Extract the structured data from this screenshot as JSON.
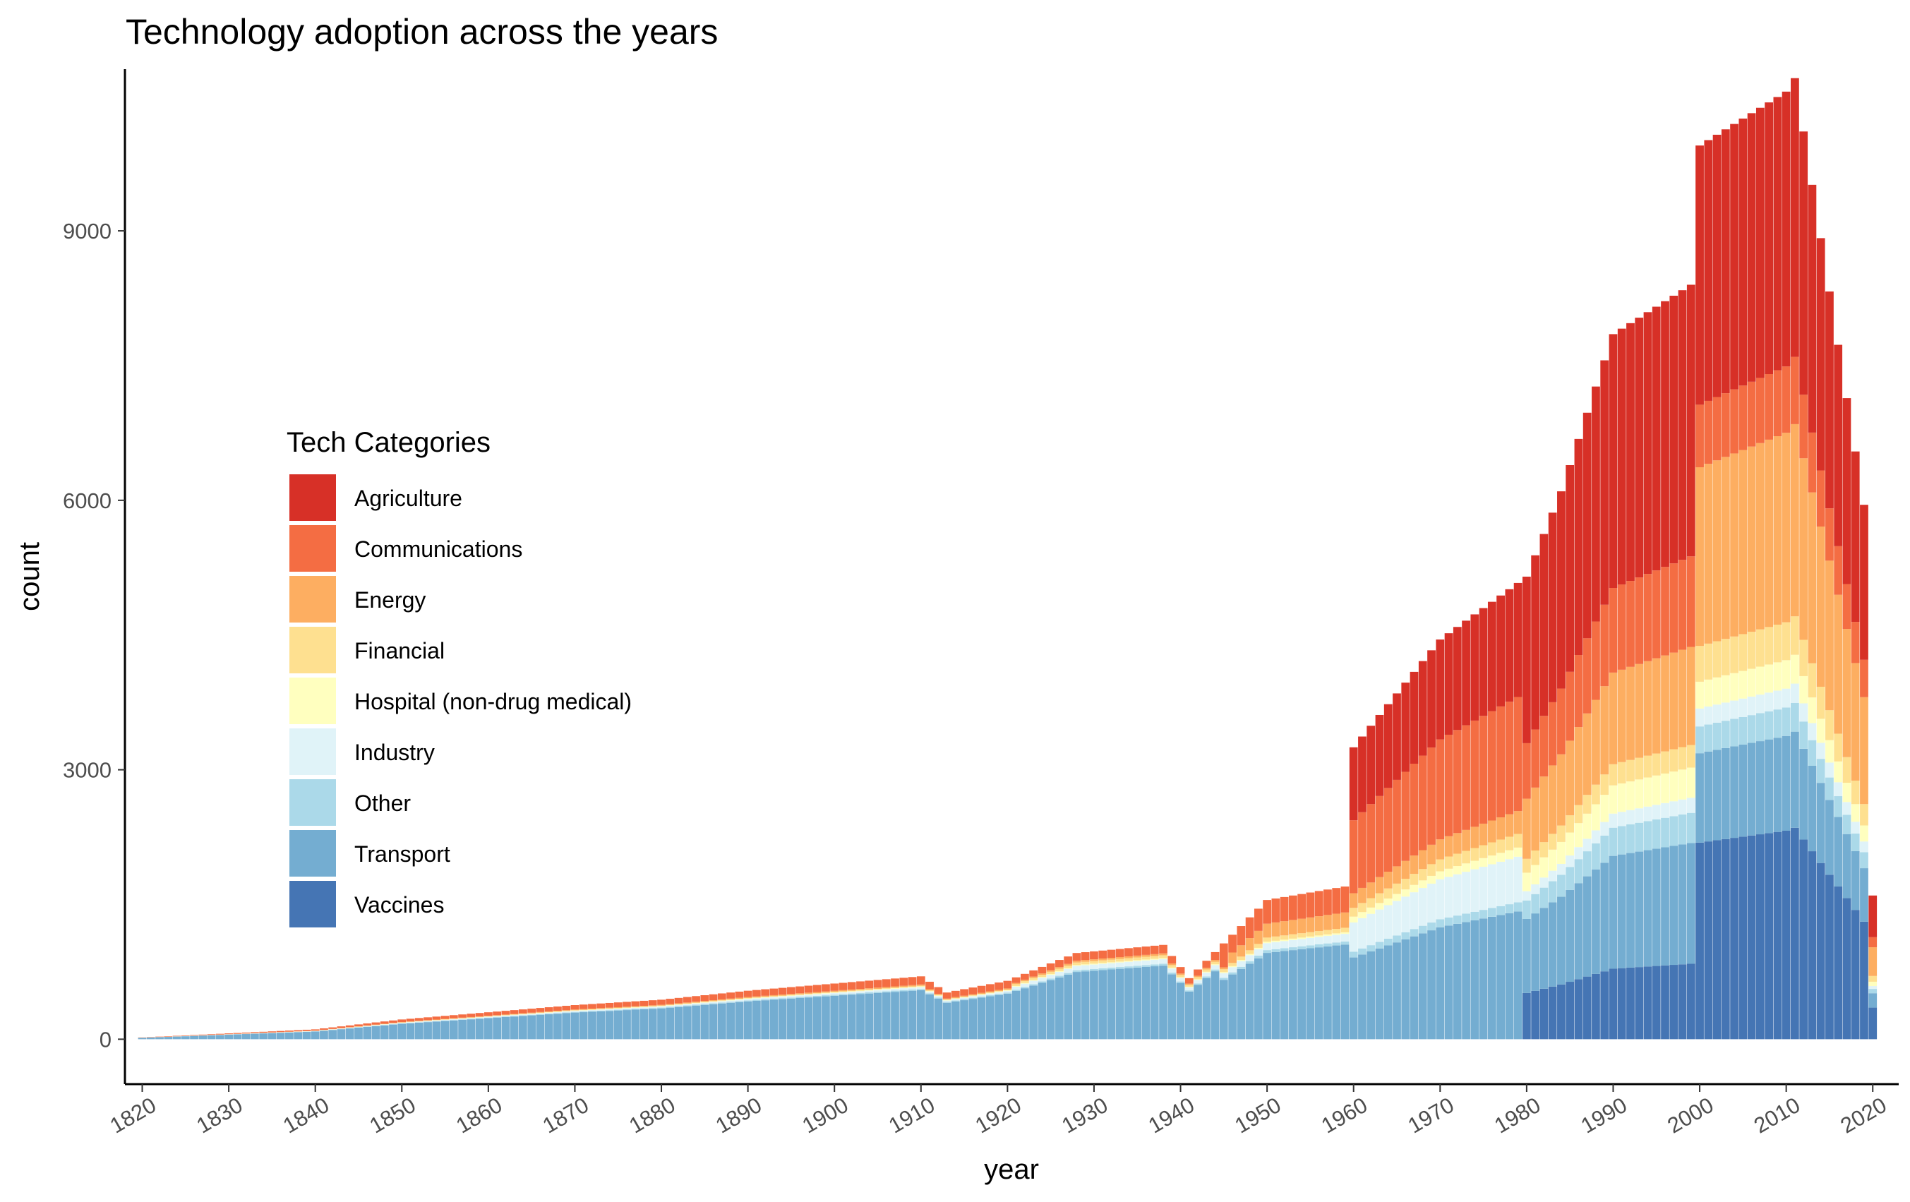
{
  "chart_data": {
    "type": "bar",
    "stacked": true,
    "title": "Technology adoption across the years",
    "xlabel": "year",
    "ylabel": "count",
    "xlim": [
      1818,
      2023
    ],
    "ylim": [
      -500,
      10800
    ],
    "x_ticks": [
      1820,
      1830,
      1840,
      1850,
      1860,
      1870,
      1880,
      1890,
      1900,
      1910,
      1920,
      1930,
      1940,
      1950,
      1960,
      1970,
      1980,
      1990,
      2000,
      2010,
      2020
    ],
    "y_ticks": [
      0,
      3000,
      6000,
      9000
    ],
    "legend": {
      "title": "Tech Categories",
      "placement": "left-inside"
    },
    "grid": false,
    "series_order_bottom_to_top": [
      "Vaccines",
      "Transport",
      "Other",
      "Industry",
      "Hospital (non-drug medical)",
      "Financial",
      "Energy",
      "Communications",
      "Agriculture"
    ],
    "series": [
      {
        "name": "Agriculture",
        "color": "#D73027"
      },
      {
        "name": "Communications",
        "color": "#F46D43"
      },
      {
        "name": "Energy",
        "color": "#FDAE61"
      },
      {
        "name": "Financial",
        "color": "#FEE090"
      },
      {
        "name": "Hospital (non-drug medical)",
        "color": "#FFFFBF"
      },
      {
        "name": "Industry",
        "color": "#E0F3F8"
      },
      {
        "name": "Other",
        "color": "#ABD9E9"
      },
      {
        "name": "Transport",
        "color": "#74ADD1"
      },
      {
        "name": "Vaccines",
        "color": "#4575B4"
      }
    ],
    "totals_by_year": [
      {
        "year": 1820,
        "total": 20
      },
      {
        "year": 1830,
        "total": 65
      },
      {
        "year": 1840,
        "total": 110
      },
      {
        "year": 1850,
        "total": 220
      },
      {
        "year": 1860,
        "total": 300
      },
      {
        "year": 1870,
        "total": 380
      },
      {
        "year": 1880,
        "total": 440
      },
      {
        "year": 1890,
        "total": 540
      },
      {
        "year": 1900,
        "total": 620
      },
      {
        "year": 1910,
        "total": 700
      },
      {
        "year": 1913,
        "total": 520
      },
      {
        "year": 1920,
        "total": 650
      },
      {
        "year": 1928,
        "total": 960
      },
      {
        "year": 1938,
        "total": 1050
      },
      {
        "year": 1941,
        "total": 680
      },
      {
        "year": 1950,
        "total": 1550
      },
      {
        "year": 1959,
        "total": 1700
      },
      {
        "year": 1960,
        "total": 3250
      },
      {
        "year": 1970,
        "total": 4450
      },
      {
        "year": 1980,
        "total": 5150
      },
      {
        "year": 1984,
        "total": 6100
      },
      {
        "year": 1990,
        "total": 7850
      },
      {
        "year": 1999,
        "total": 8400
      },
      {
        "year": 2000,
        "total": 9950
      },
      {
        "year": 2010,
        "total": 10550
      },
      {
        "year": 2011,
        "total": 10700
      },
      {
        "year": 2019,
        "total": 5950
      },
      {
        "year": 2020,
        "total": 1600
      }
    ]
  }
}
